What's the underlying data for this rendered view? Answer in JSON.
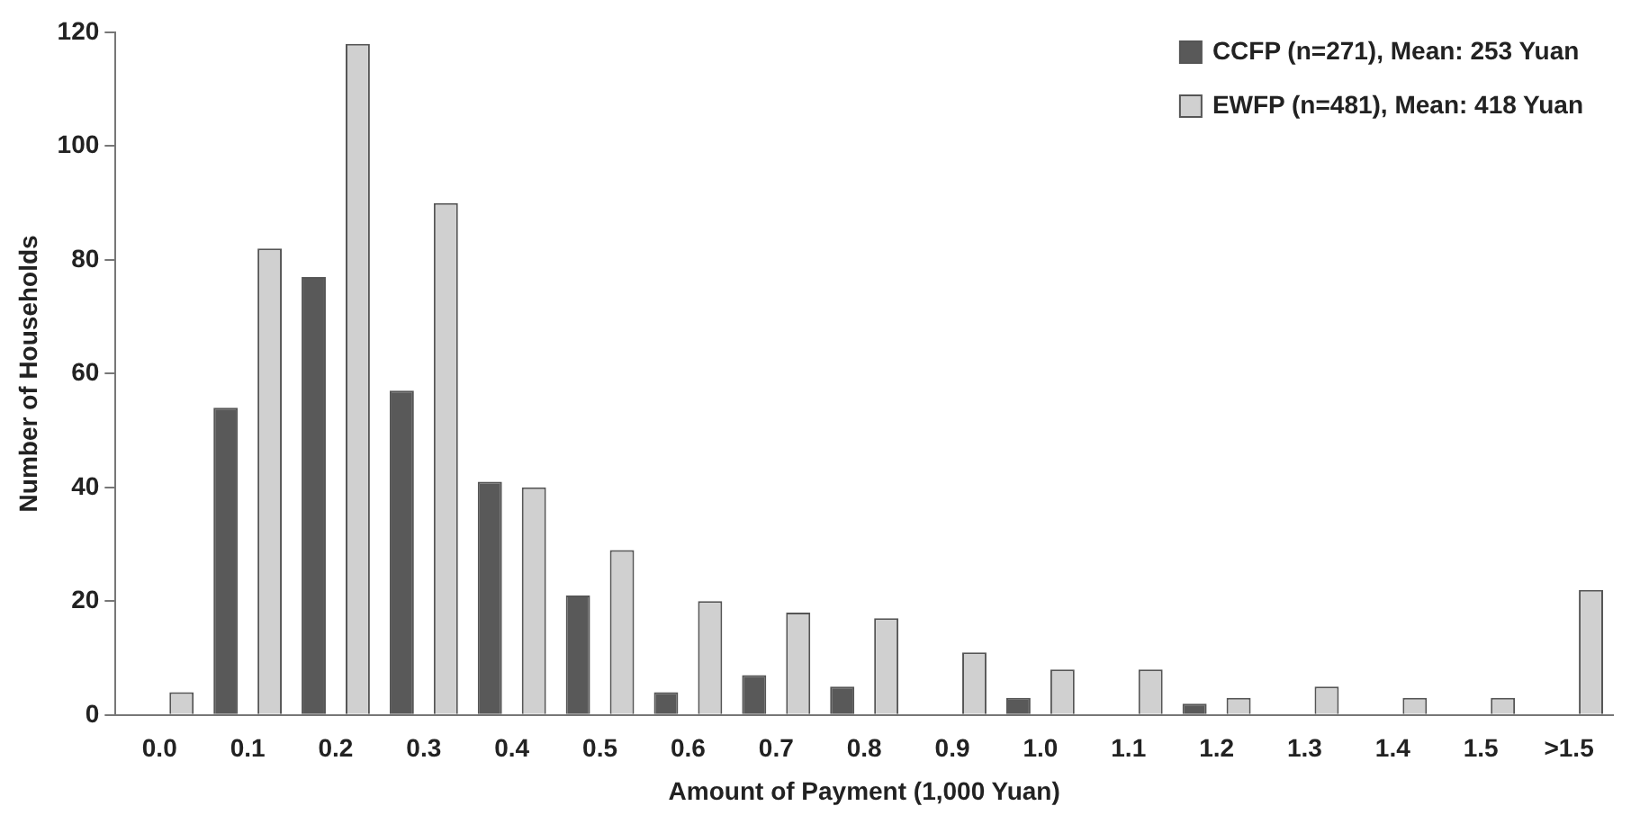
{
  "chart_data": {
    "type": "bar",
    "xlabel": "Amount of Payment (1,000 Yuan)",
    "ylabel": "Number of Households",
    "categories": [
      "0.0",
      "0.1",
      "0.2",
      "0.3",
      "0.4",
      "0.5",
      "0.6",
      "0.7",
      "0.8",
      "0.9",
      "1.0",
      "1.1",
      "1.2",
      "1.3",
      "1.4",
      "1.5",
      ">1.5"
    ],
    "series": [
      {
        "name": "CCFP (n=271), Mean: 253 Yuan",
        "color": "#595959",
        "values": [
          0,
          54,
          77,
          57,
          41,
          21,
          4,
          7,
          5,
          0,
          3,
          0,
          2,
          0,
          0,
          0,
          0
        ]
      },
      {
        "name": "EWFP (n=481), Mean: 418 Yuan",
        "color": "#d0d0d0",
        "values": [
          4,
          82,
          118,
          90,
          40,
          29,
          20,
          18,
          17,
          11,
          8,
          8,
          3,
          5,
          3,
          3,
          22
        ]
      }
    ],
    "ylim": [
      0,
      120
    ],
    "yticks": [
      0,
      20,
      40,
      60,
      80,
      100,
      120
    ],
    "grid": false,
    "legend": "top right"
  }
}
